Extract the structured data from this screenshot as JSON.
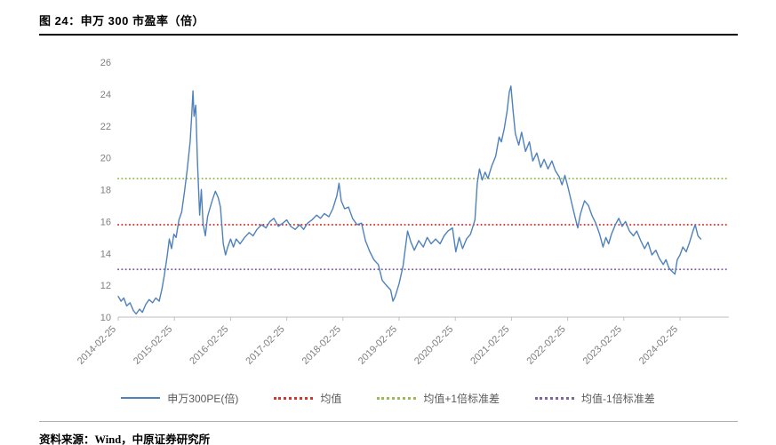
{
  "header": {
    "title": "图 24：申万 300 市盈率（倍）"
  },
  "footer": {
    "source": "资料来源：Wind，中原证券研究所"
  },
  "chart_data": {
    "type": "line",
    "title": "图 24：申万 300 市盈率（倍）",
    "xlabel": "",
    "ylabel": "",
    "ylim": [
      10,
      26
    ],
    "y_ticks": [
      10,
      12,
      14,
      16,
      18,
      20,
      22,
      24,
      26
    ],
    "x_domain": [
      2014.15,
      2025.02
    ],
    "x_ticks": [
      "2014-02-25",
      "2015-02-25",
      "2016-02-25",
      "2017-02-25",
      "2018-02-25",
      "2019-02-25",
      "2020-02-25",
      "2021-02-25",
      "2022-02-25",
      "2023-02-25",
      "2024-02-25"
    ],
    "x_tick_positions": [
      2014.15,
      2015.15,
      2016.15,
      2017.15,
      2018.15,
      2019.15,
      2020.15,
      2021.15,
      2022.15,
      2023.15,
      2024.15
    ],
    "grid": false,
    "legend_position": "bottom",
    "series": [
      {
        "id": "sw300pe",
        "name": "申万300PE(倍)",
        "color": "#4f81bd",
        "style": "solid",
        "points": [
          [
            2014.15,
            11.3
          ],
          [
            2014.2,
            11.0
          ],
          [
            2014.25,
            11.2
          ],
          [
            2014.3,
            10.7
          ],
          [
            2014.36,
            10.9
          ],
          [
            2014.42,
            10.4
          ],
          [
            2014.47,
            10.2
          ],
          [
            2014.53,
            10.5
          ],
          [
            2014.58,
            10.3
          ],
          [
            2014.64,
            10.8
          ],
          [
            2014.7,
            11.1
          ],
          [
            2014.76,
            10.9
          ],
          [
            2014.82,
            11.2
          ],
          [
            2014.88,
            11.0
          ],
          [
            2014.93,
            11.8
          ],
          [
            2014.97,
            12.6
          ],
          [
            2015.02,
            13.8
          ],
          [
            2015.06,
            14.9
          ],
          [
            2015.1,
            14.3
          ],
          [
            2015.14,
            15.2
          ],
          [
            2015.18,
            15.0
          ],
          [
            2015.23,
            16.1
          ],
          [
            2015.28,
            16.6
          ],
          [
            2015.33,
            17.9
          ],
          [
            2015.38,
            19.3
          ],
          [
            2015.43,
            21.0
          ],
          [
            2015.46,
            22.8
          ],
          [
            2015.48,
            24.2
          ],
          [
            2015.5,
            22.6
          ],
          [
            2015.53,
            23.3
          ],
          [
            2015.56,
            19.8
          ],
          [
            2015.6,
            16.4
          ],
          [
            2015.63,
            18.0
          ],
          [
            2015.66,
            15.9
          ],
          [
            2015.7,
            15.1
          ],
          [
            2015.74,
            16.3
          ],
          [
            2015.78,
            16.8
          ],
          [
            2015.83,
            17.4
          ],
          [
            2015.88,
            17.9
          ],
          [
            2015.93,
            17.5
          ],
          [
            2015.97,
            16.9
          ],
          [
            2016.02,
            14.6
          ],
          [
            2016.06,
            13.9
          ],
          [
            2016.1,
            14.4
          ],
          [
            2016.15,
            14.9
          ],
          [
            2016.2,
            14.4
          ],
          [
            2016.25,
            14.9
          ],
          [
            2016.32,
            14.6
          ],
          [
            2016.4,
            15.0
          ],
          [
            2016.48,
            15.3
          ],
          [
            2016.55,
            15.1
          ],
          [
            2016.62,
            15.5
          ],
          [
            2016.7,
            15.8
          ],
          [
            2016.78,
            15.6
          ],
          [
            2016.85,
            16.0
          ],
          [
            2016.92,
            16.2
          ],
          [
            2017.0,
            15.7
          ],
          [
            2017.08,
            15.9
          ],
          [
            2017.15,
            16.1
          ],
          [
            2017.22,
            15.7
          ],
          [
            2017.3,
            15.5
          ],
          [
            2017.38,
            15.8
          ],
          [
            2017.45,
            15.5
          ],
          [
            2017.52,
            15.9
          ],
          [
            2017.6,
            16.1
          ],
          [
            2017.68,
            16.4
          ],
          [
            2017.75,
            16.2
          ],
          [
            2017.82,
            16.5
          ],
          [
            2017.9,
            16.3
          ],
          [
            2017.97,
            16.8
          ],
          [
            2018.04,
            17.6
          ],
          [
            2018.08,
            18.4
          ],
          [
            2018.12,
            17.3
          ],
          [
            2018.18,
            16.8
          ],
          [
            2018.25,
            16.9
          ],
          [
            2018.32,
            16.2
          ],
          [
            2018.4,
            15.8
          ],
          [
            2018.48,
            15.9
          ],
          [
            2018.55,
            14.8
          ],
          [
            2018.63,
            14.1
          ],
          [
            2018.7,
            13.6
          ],
          [
            2018.78,
            13.3
          ],
          [
            2018.85,
            12.3
          ],
          [
            2018.92,
            12.0
          ],
          [
            2019.0,
            11.7
          ],
          [
            2019.04,
            11.0
          ],
          [
            2019.08,
            11.3
          ],
          [
            2019.15,
            12.1
          ],
          [
            2019.22,
            13.2
          ],
          [
            2019.3,
            15.4
          ],
          [
            2019.36,
            14.7
          ],
          [
            2019.42,
            14.2
          ],
          [
            2019.5,
            14.8
          ],
          [
            2019.58,
            14.4
          ],
          [
            2019.65,
            15.0
          ],
          [
            2019.72,
            14.6
          ],
          [
            2019.8,
            14.9
          ],
          [
            2019.88,
            14.6
          ],
          [
            2019.95,
            15.1
          ],
          [
            2020.02,
            15.4
          ],
          [
            2020.1,
            15.6
          ],
          [
            2020.16,
            14.1
          ],
          [
            2020.22,
            15.0
          ],
          [
            2020.28,
            14.3
          ],
          [
            2020.35,
            14.9
          ],
          [
            2020.42,
            15.2
          ],
          [
            2020.5,
            16.1
          ],
          [
            2020.54,
            18.4
          ],
          [
            2020.58,
            19.3
          ],
          [
            2020.63,
            18.6
          ],
          [
            2020.68,
            19.1
          ],
          [
            2020.73,
            18.7
          ],
          [
            2020.8,
            19.5
          ],
          [
            2020.87,
            20.1
          ],
          [
            2020.93,
            21.3
          ],
          [
            2020.97,
            21.0
          ],
          [
            2021.02,
            21.8
          ],
          [
            2021.07,
            22.9
          ],
          [
            2021.11,
            24.1
          ],
          [
            2021.14,
            24.5
          ],
          [
            2021.18,
            22.9
          ],
          [
            2021.22,
            21.5
          ],
          [
            2021.28,
            20.8
          ],
          [
            2021.33,
            21.6
          ],
          [
            2021.4,
            20.4
          ],
          [
            2021.47,
            21.0
          ],
          [
            2021.53,
            19.8
          ],
          [
            2021.6,
            20.3
          ],
          [
            2021.67,
            19.4
          ],
          [
            2021.73,
            19.9
          ],
          [
            2021.8,
            19.3
          ],
          [
            2021.87,
            19.8
          ],
          [
            2021.93,
            19.2
          ],
          [
            2022.0,
            18.8
          ],
          [
            2022.05,
            18.3
          ],
          [
            2022.1,
            18.9
          ],
          [
            2022.16,
            18.1
          ],
          [
            2022.22,
            17.2
          ],
          [
            2022.28,
            16.3
          ],
          [
            2022.33,
            15.6
          ],
          [
            2022.38,
            16.5
          ],
          [
            2022.45,
            17.3
          ],
          [
            2022.52,
            17.0
          ],
          [
            2022.58,
            16.4
          ],
          [
            2022.65,
            15.9
          ],
          [
            2022.72,
            15.2
          ],
          [
            2022.78,
            14.4
          ],
          [
            2022.83,
            15.0
          ],
          [
            2022.88,
            14.6
          ],
          [
            2022.93,
            15.2
          ],
          [
            2023.0,
            15.8
          ],
          [
            2023.06,
            16.2
          ],
          [
            2023.12,
            15.7
          ],
          [
            2023.18,
            16.0
          ],
          [
            2023.25,
            15.4
          ],
          [
            2023.32,
            15.1
          ],
          [
            2023.38,
            15.4
          ],
          [
            2023.45,
            14.8
          ],
          [
            2023.52,
            14.3
          ],
          [
            2023.58,
            14.7
          ],
          [
            2023.65,
            13.9
          ],
          [
            2023.72,
            14.2
          ],
          [
            2023.78,
            13.7
          ],
          [
            2023.85,
            13.3
          ],
          [
            2023.9,
            13.6
          ],
          [
            2023.95,
            13.1
          ],
          [
            2024.0,
            12.9
          ],
          [
            2024.06,
            12.7
          ],
          [
            2024.1,
            13.6
          ],
          [
            2024.15,
            13.9
          ],
          [
            2024.2,
            14.4
          ],
          [
            2024.26,
            14.1
          ],
          [
            2024.32,
            14.7
          ],
          [
            2024.38,
            15.4
          ],
          [
            2024.42,
            15.8
          ],
          [
            2024.47,
            15.1
          ],
          [
            2024.52,
            14.9
          ]
        ]
      }
    ],
    "reference_lines": [
      {
        "id": "mean",
        "name": "均值",
        "value": 15.8,
        "color": "#d9342b",
        "style": "dotted"
      },
      {
        "id": "mean-plus-1std",
        "name": "均值+1倍标准差",
        "value": 18.7,
        "color": "#9bbb59",
        "style": "dotted"
      },
      {
        "id": "mean-minus-1std",
        "name": "均值-1倍标准差",
        "value": 13.0,
        "color": "#8064a2",
        "style": "dotted"
      }
    ],
    "legend": [
      {
        "id": "sw300pe",
        "label": "申万300PE(倍)",
        "color": "#4f81bd",
        "style": "solid"
      },
      {
        "id": "mean",
        "label": "均值",
        "color": "#d9342b",
        "style": "dotted"
      },
      {
        "id": "mean-plus-1std",
        "label": "均值+1倍标准差",
        "color": "#9bbb59",
        "style": "dotted"
      },
      {
        "id": "mean-minus-1std",
        "label": "均值-1倍标准差",
        "color": "#8064a2",
        "style": "dotted"
      }
    ],
    "axis_color": "#bfbfbf",
    "tick_label_color": "#7f7f7f"
  }
}
